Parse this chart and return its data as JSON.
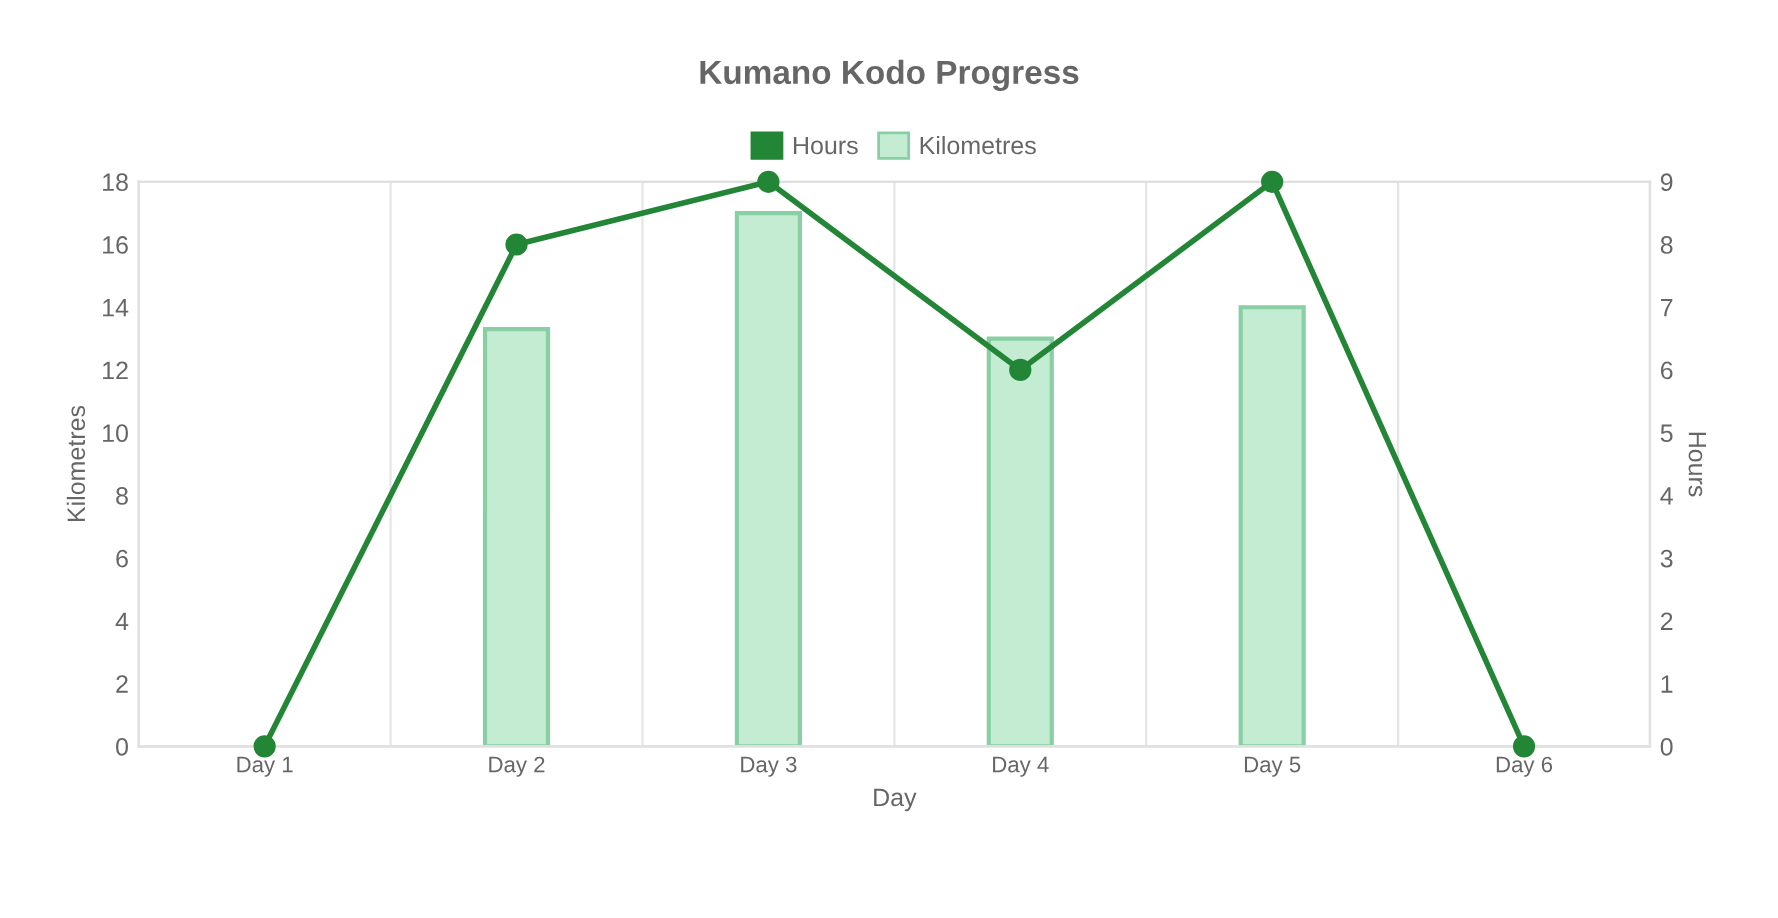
{
  "chart_data": {
    "type": "bar",
    "title": "Kumano Kodo Progress",
    "xlabel": "Day",
    "ylabel": "Kilometres",
    "y2label": "Hours",
    "categories": [
      "Day 1",
      "Day 2",
      "Day 3",
      "Day 4",
      "Day 5",
      "Day 6"
    ],
    "series": [
      {
        "name": "Hours",
        "type": "line",
        "axis": "y2",
        "color": "#238636",
        "values": [
          0,
          8,
          9,
          6,
          9,
          0
        ]
      },
      {
        "name": "Kilometres",
        "color": "#c3ecd3",
        "values": [
          null,
          13.3,
          17,
          13,
          14,
          null
        ]
      }
    ],
    "ylim": [
      0,
      18
    ],
    "yticks": [
      0,
      2,
      4,
      6,
      8,
      10,
      12,
      14,
      16,
      18
    ],
    "y2lim": [
      0,
      9
    ],
    "y2ticks": [
      0,
      1,
      2,
      3,
      4,
      5,
      6,
      7,
      8,
      9
    ],
    "grid": "x",
    "legend": "top",
    "marker": "circle",
    "line_style": "solid"
  }
}
